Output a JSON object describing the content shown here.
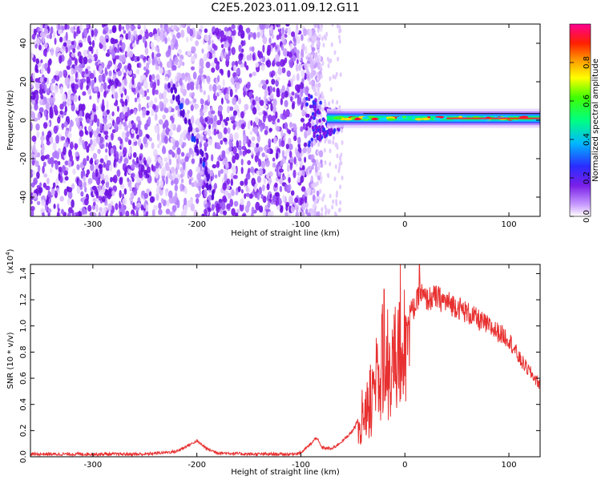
{
  "title": "C2E5.2023.011.09.12.G11",
  "chart_data": [
    {
      "type": "heatmap",
      "xlabel": "Height of straight line (km)",
      "ylabel": "Frequency (Hz)",
      "xlim": [
        -360,
        130
      ],
      "ylim": [
        -50,
        50
      ],
      "x_ticks": [
        -300,
        -200,
        -100,
        0,
        100
      ],
      "y_ticks": [
        -40,
        -20,
        0,
        20,
        40
      ],
      "colorbar": {
        "label": "Normalized spectral amplitude",
        "range": [
          0,
          1
        ],
        "ticks": [
          0.0,
          0.2,
          0.4,
          0.6,
          0.8
        ],
        "colormap": [
          "#f0e0ff",
          "#8a2be2",
          "#2040ff",
          "#00e0ff",
          "#00ff40",
          "#ffff00",
          "#ff8000",
          "#ff0000",
          "#ff0080"
        ]
      },
      "features": [
        {
          "name": "noise-region",
          "x_range": [
            -360,
            -90
          ],
          "y_range": [
            -50,
            50
          ]
        },
        {
          "name": "diagonal-streak",
          "points": [
            [
              -225,
              18
            ],
            [
              -210,
              0
            ],
            [
              -195,
              -20
            ],
            [
              -185,
              -40
            ]
          ]
        },
        {
          "name": "carrier-line",
          "x_range": [
            -85,
            130
          ],
          "y": 1
        }
      ]
    },
    {
      "type": "line",
      "xlabel": "Height of straight line (km)",
      "ylabel": "SNR (10 * v/v)",
      "yscale_label": "(x10",
      "yscale_exp": "4",
      "yscale_close": ")",
      "xlim": [
        -360,
        130
      ],
      "ylim": [
        0,
        1.47
      ],
      "x_ticks": [
        -300,
        -200,
        -100,
        0,
        100
      ],
      "y_ticks": [
        0.0,
        0.2,
        0.4,
        0.6,
        0.8,
        1.0,
        1.2,
        1.4
      ],
      "series": [
        {
          "color": "#e83030",
          "x": [
            -360,
            -300,
            -250,
            -220,
            -210,
            -200,
            -190,
            -180,
            -150,
            -110,
            -100,
            -90,
            -85,
            -80,
            -70,
            -60,
            -50,
            -40,
            -30,
            -25,
            -20,
            -15,
            -10,
            -5,
            0,
            5,
            10,
            15,
            20,
            30,
            40,
            50,
            60,
            70,
            80,
            90,
            100,
            110,
            120,
            130
          ],
          "values": [
            0.02,
            0.02,
            0.02,
            0.04,
            0.08,
            0.12,
            0.06,
            0.03,
            0.02,
            0.02,
            0.03,
            0.1,
            0.15,
            0.07,
            0.06,
            0.12,
            0.2,
            0.35,
            0.55,
            0.7,
            0.9,
            0.9,
            0.95,
            1.0,
            1.05,
            1.1,
            1.15,
            1.25,
            1.2,
            1.22,
            1.18,
            1.15,
            1.1,
            1.05,
            1.0,
            0.95,
            0.9,
            0.75,
            0.65,
            0.55
          ]
        }
      ]
    }
  ]
}
